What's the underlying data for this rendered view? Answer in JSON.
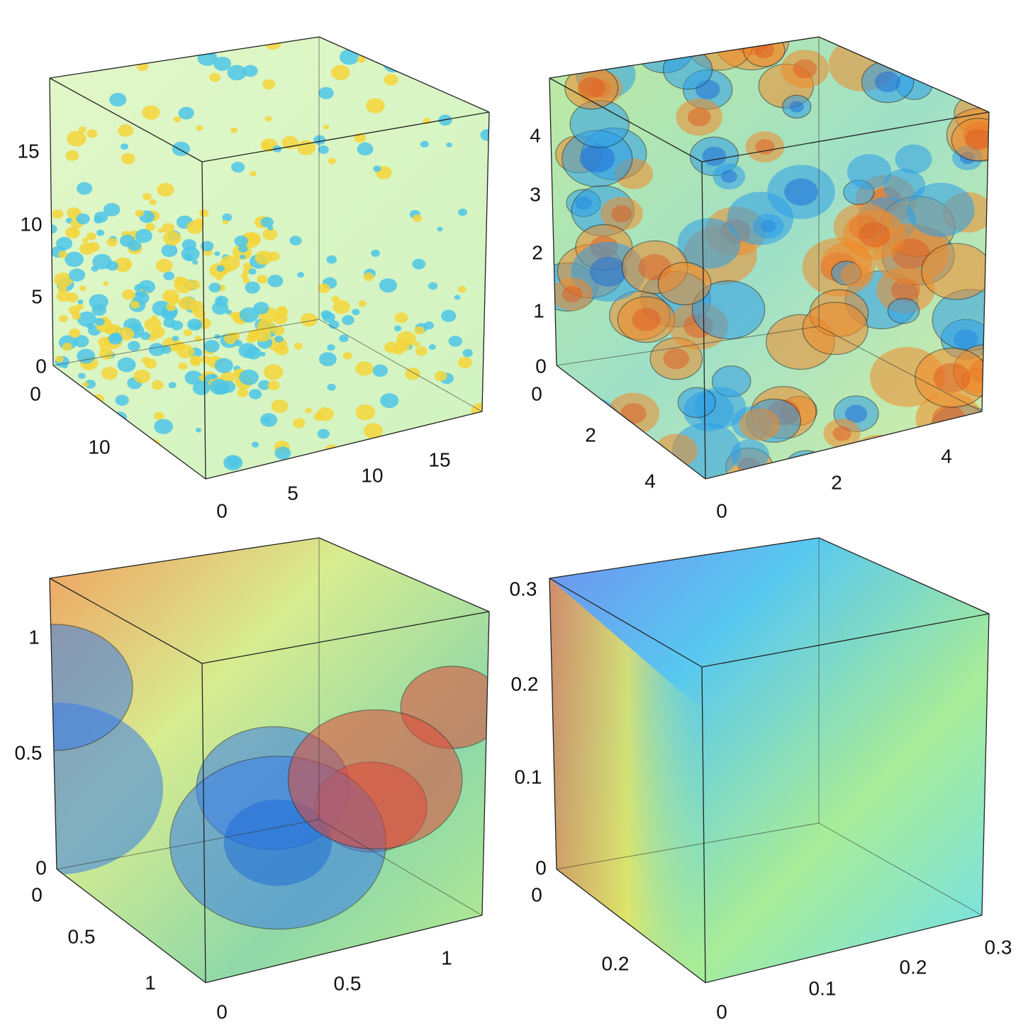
{
  "chart_data": [
    {
      "type": "volume3d",
      "title": "",
      "panel": "top-left",
      "z_ticks": [
        "15",
        "10",
        "5",
        "0"
      ],
      "y_ticks": [
        "0",
        "10"
      ],
      "x_ticks": [
        "0",
        "5",
        "10",
        "15"
      ],
      "zlim": [
        0,
        19
      ],
      "ylim": [
        0,
        19
      ],
      "xlim": [
        0,
        19
      ],
      "colors": {
        "background": "#d6f5c4",
        "positive": "#f5d53a",
        "negative": "#4ec6e8"
      }
    },
    {
      "type": "volume3d",
      "title": "",
      "panel": "top-right",
      "z_ticks": [
        "4",
        "3",
        "2",
        "1",
        "0"
      ],
      "y_ticks": [
        "0",
        "2",
        "4"
      ],
      "x_ticks": [
        "0",
        "2",
        "4"
      ],
      "zlim": [
        0,
        4.8
      ],
      "ylim": [
        0,
        4.8
      ],
      "xlim": [
        0,
        4.8
      ],
      "colors": {
        "background": "#cdf0b8",
        "positive": "#f08a2a",
        "negative": "#2e9ee8"
      }
    },
    {
      "type": "volume3d",
      "title": "",
      "panel": "bottom-left",
      "z_ticks": [
        "1",
        "0.5",
        "0"
      ],
      "y_ticks": [
        "0",
        "0.5",
        "1"
      ],
      "x_ticks": [
        "0",
        "0.5",
        "1"
      ],
      "zlim": [
        0,
        1.2
      ],
      "ylim": [
        0,
        1.2
      ],
      "xlim": [
        0,
        1.2
      ],
      "colors": {
        "background": "#c8eea8",
        "positive": "#e04a3a",
        "negative": "#3a7ee8"
      }
    },
    {
      "type": "volume3d",
      "title": "",
      "panel": "bottom-right",
      "z_ticks": [
        "0.3",
        "0.2",
        "0.1",
        "0"
      ],
      "y_ticks": [
        "0",
        "0.2"
      ],
      "x_ticks": [
        "0",
        "0.1",
        "0.2",
        "0.3"
      ],
      "zlim": [
        0,
        0.31
      ],
      "ylim": [
        0,
        0.31
      ],
      "xlim": [
        0,
        0.31
      ],
      "colors": {
        "background": "#b8f0a8",
        "positive": "#f08a3a",
        "negative": "#6a7ae8"
      }
    }
  ]
}
